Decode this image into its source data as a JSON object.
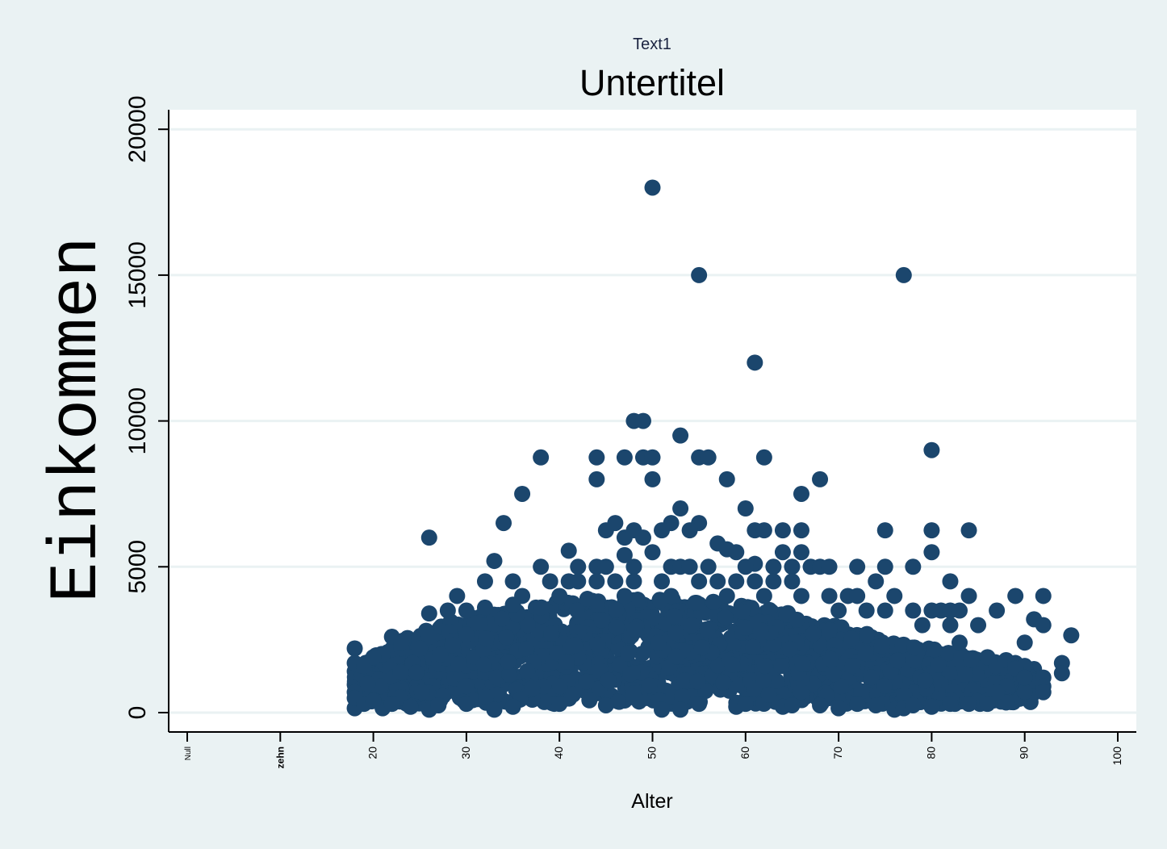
{
  "chart_data": {
    "type": "scatter",
    "supertitle": "Text1",
    "title": "Untertitel",
    "xlabel": "Alter",
    "ylabel": "Einkommen",
    "xlim": [
      -2,
      102
    ],
    "ylim": [
      -700,
      20700
    ],
    "grid": true,
    "colors": {
      "background": "#eaf2f3",
      "plot_area": "#ffffff",
      "marker": "#1b466d",
      "gridline": "#eaf2f3"
    },
    "xticks": [
      {
        "value": 0,
        "label": "Null"
      },
      {
        "value": 10,
        "label": "zehn"
      },
      {
        "value": 20,
        "label": "20"
      },
      {
        "value": 30,
        "label": "30"
      },
      {
        "value": 40,
        "label": "40"
      },
      {
        "value": 50,
        "label": "50"
      },
      {
        "value": 60,
        "label": "60"
      },
      {
        "value": 70,
        "label": "70"
      },
      {
        "value": 80,
        "label": "80"
      },
      {
        "value": 90,
        "label": "90"
      },
      {
        "value": 100,
        "label": "100"
      }
    ],
    "yticks": [
      {
        "value": 0,
        "label": "0"
      },
      {
        "value": 5000,
        "label": "5000"
      },
      {
        "value": 10000,
        "label": "10000"
      },
      {
        "value": 15000,
        "label": "15000"
      },
      {
        "value": 20000,
        "label": "20000"
      }
    ],
    "points": [
      [
        50,
        18000
      ],
      [
        55,
        15000
      ],
      [
        77,
        15000
      ],
      [
        61,
        12000
      ],
      [
        48,
        10000
      ],
      [
        49,
        10000
      ],
      [
        53,
        9500
      ],
      [
        80,
        9000
      ],
      [
        38,
        8750
      ],
      [
        44,
        8750
      ],
      [
        47,
        8750
      ],
      [
        49,
        8750
      ],
      [
        50,
        8750
      ],
      [
        55,
        8750
      ],
      [
        56,
        8750
      ],
      [
        62,
        8750
      ],
      [
        44,
        8000
      ],
      [
        50,
        8000
      ],
      [
        58,
        8000
      ],
      [
        68,
        8000
      ],
      [
        36,
        7500
      ],
      [
        66,
        7500
      ],
      [
        53,
        7000
      ],
      [
        60,
        7000
      ],
      [
        34,
        6500
      ],
      [
        46,
        6500
      ],
      [
        52,
        6500
      ],
      [
        55,
        6500
      ],
      [
        26,
        6000
      ],
      [
        45,
        6250
      ],
      [
        47,
        6000
      ],
      [
        48,
        6250
      ],
      [
        49,
        6000
      ],
      [
        51,
        6250
      ],
      [
        54,
        6250
      ],
      [
        61,
        6250
      ],
      [
        62,
        6250
      ],
      [
        64,
        6250
      ],
      [
        66,
        6250
      ],
      [
        75,
        6250
      ],
      [
        80,
        6250
      ],
      [
        84,
        6250
      ],
      [
        33,
        5200
      ],
      [
        41,
        5550
      ],
      [
        47,
        5400
      ],
      [
        50,
        5500
      ],
      [
        57,
        5800
      ],
      [
        58,
        5600
      ],
      [
        59,
        5500
      ],
      [
        61,
        5100
      ],
      [
        64,
        5500
      ],
      [
        66,
        5500
      ],
      [
        80,
        5500
      ],
      [
        38,
        5000
      ],
      [
        42,
        5000
      ],
      [
        44,
        5000
      ],
      [
        45,
        5000
      ],
      [
        48,
        5000
      ],
      [
        52,
        5000
      ],
      [
        53,
        5000
      ],
      [
        54,
        5000
      ],
      [
        56,
        5000
      ],
      [
        60,
        5000
      ],
      [
        63,
        5000
      ],
      [
        65,
        5000
      ],
      [
        67,
        5000
      ],
      [
        68,
        5000
      ],
      [
        69,
        5000
      ],
      [
        72,
        5000
      ],
      [
        75,
        5000
      ],
      [
        78,
        5000
      ],
      [
        32,
        4500
      ],
      [
        35,
        4500
      ],
      [
        39,
        4500
      ],
      [
        41,
        4500
      ],
      [
        42,
        4500
      ],
      [
        44,
        4500
      ],
      [
        46,
        4500
      ],
      [
        48,
        4500
      ],
      [
        51,
        4500
      ],
      [
        55,
        4500
      ],
      [
        57,
        4500
      ],
      [
        59,
        4500
      ],
      [
        61,
        4500
      ],
      [
        63,
        4500
      ],
      [
        65,
        4500
      ],
      [
        74,
        4500
      ],
      [
        82,
        4500
      ],
      [
        29,
        4000
      ],
      [
        36,
        4000
      ],
      [
        40,
        4000
      ],
      [
        43,
        3900
      ],
      [
        47,
        4000
      ],
      [
        52,
        4000
      ],
      [
        58,
        4000
      ],
      [
        62,
        4000
      ],
      [
        66,
        4000
      ],
      [
        69,
        4000
      ],
      [
        71,
        4000
      ],
      [
        72,
        4000
      ],
      [
        76,
        4000
      ],
      [
        84,
        4000
      ],
      [
        89,
        4000
      ],
      [
        92,
        4000
      ],
      [
        26,
        3400
      ],
      [
        28,
        3500
      ],
      [
        30,
        3500
      ],
      [
        32,
        3600
      ],
      [
        35,
        3700
      ],
      [
        38,
        3600
      ],
      [
        70,
        3500
      ],
      [
        73,
        3500
      ],
      [
        75,
        3500
      ],
      [
        78,
        3500
      ],
      [
        80,
        3500
      ],
      [
        81,
        3500
      ],
      [
        82,
        3500
      ],
      [
        83,
        3500
      ],
      [
        87,
        3500
      ],
      [
        91,
        3200
      ],
      [
        85,
        3000
      ],
      [
        92,
        3000
      ],
      [
        79,
        3000
      ],
      [
        82,
        3000
      ],
      [
        90,
        2400
      ],
      [
        95,
        2650
      ],
      [
        83,
        2400
      ],
      [
        94,
        1700
      ],
      [
        94,
        1350
      ],
      [
        92,
        1200
      ],
      [
        92,
        900
      ],
      [
        92,
        700
      ],
      [
        22,
        2600
      ],
      [
        18,
        2200
      ],
      [
        21,
        2000
      ],
      [
        18,
        1700
      ],
      [
        25,
        2200
      ],
      [
        19,
        1600
      ],
      [
        20,
        1900
      ],
      [
        23,
        2400
      ],
      [
        86,
        1900
      ],
      [
        88,
        1800
      ],
      [
        89,
        1700
      ],
      [
        90,
        1600
      ],
      [
        89,
        1500
      ],
      [
        90,
        1200
      ],
      [
        88,
        900
      ],
      [
        86,
        400
      ],
      [
        88,
        350
      ],
      [
        87,
        700
      ],
      [
        76,
        100
      ],
      [
        77,
        150
      ],
      [
        70,
        150
      ],
      [
        64,
        200
      ],
      [
        59,
        200
      ],
      [
        53,
        100
      ],
      [
        51,
        100
      ],
      [
        33,
        100
      ],
      [
        26,
        100
      ],
      [
        21,
        150
      ],
      [
        18,
        150
      ],
      [
        18,
        700
      ],
      [
        18,
        500
      ],
      [
        19,
        300
      ],
      [
        20,
        400
      ],
      [
        22,
        300
      ],
      [
        24,
        200
      ],
      [
        27,
        250
      ],
      [
        30,
        300
      ],
      [
        35,
        200
      ],
      [
        40,
        300
      ],
      [
        45,
        250
      ],
      [
        55,
        300
      ],
      [
        60,
        300
      ],
      [
        65,
        250
      ],
      [
        68,
        250
      ],
      [
        72,
        300
      ],
      [
        74,
        250
      ],
      [
        78,
        250
      ],
      [
        80,
        200
      ],
      [
        82,
        300
      ],
      [
        84,
        300
      ],
      [
        86,
        300
      ]
    ],
    "fill_band": {
      "x_range": [
        18,
        91
      ],
      "upper_profile": [
        [
          18,
          1500
        ],
        [
          20,
          2000
        ],
        [
          22,
          2400
        ],
        [
          24,
          2600
        ],
        [
          26,
          2900
        ],
        [
          28,
          3100
        ],
        [
          30,
          3300
        ],
        [
          32,
          3400
        ],
        [
          34,
          3500
        ],
        [
          36,
          3600
        ],
        [
          38,
          3700
        ],
        [
          40,
          3800
        ],
        [
          42,
          3800
        ],
        [
          44,
          3900
        ],
        [
          46,
          3900
        ],
        [
          48,
          3900
        ],
        [
          50,
          3900
        ],
        [
          52,
          3900
        ],
        [
          54,
          3900
        ],
        [
          56,
          3850
        ],
        [
          58,
          3800
        ],
        [
          60,
          3700
        ],
        [
          62,
          3600
        ],
        [
          64,
          3500
        ],
        [
          66,
          3300
        ],
        [
          68,
          3100
        ],
        [
          70,
          3000
        ],
        [
          72,
          2800
        ],
        [
          74,
          2600
        ],
        [
          76,
          2400
        ],
        [
          78,
          2300
        ],
        [
          80,
          2200
        ],
        [
          82,
          2100
        ],
        [
          84,
          1900
        ],
        [
          86,
          1800
        ],
        [
          88,
          1700
        ],
        [
          90,
          1500
        ]
      ],
      "lower_value": 300,
      "count": 1800,
      "seed": 7
    }
  }
}
